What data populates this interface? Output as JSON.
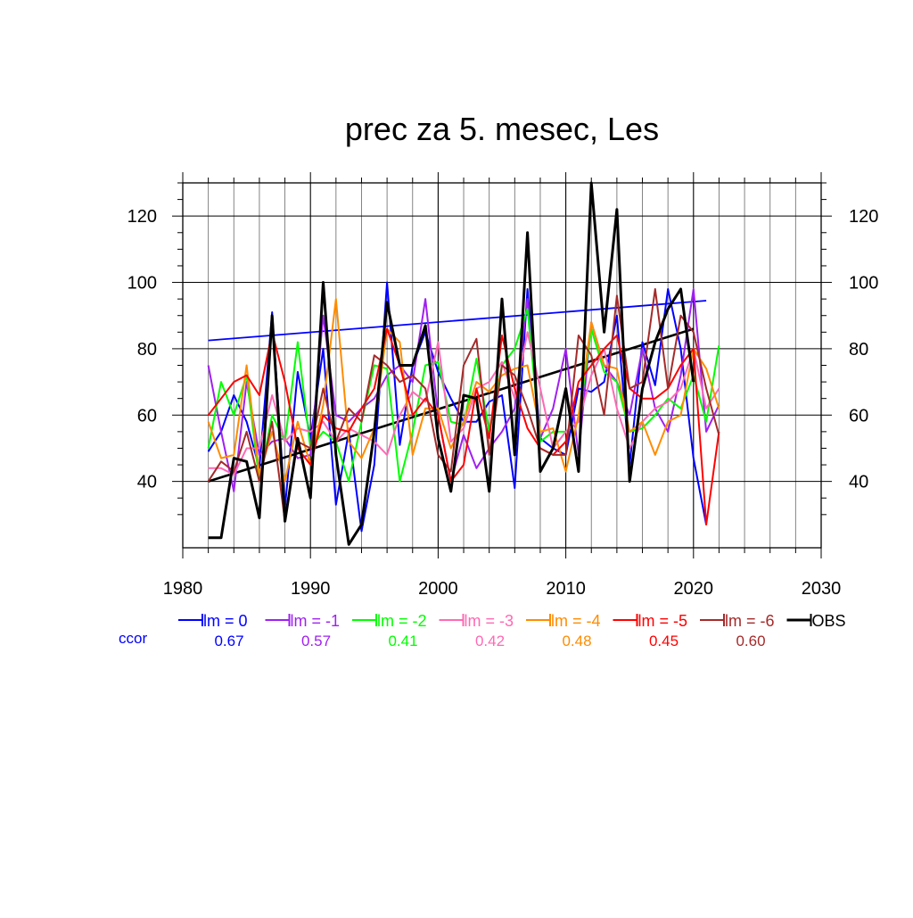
{
  "chart_data": {
    "type": "line",
    "title": "prec za 5. mesec, Les",
    "xlabel": "",
    "ylabel": "",
    "xlim": [
      1980,
      2030
    ],
    "ylim": [
      20,
      130
    ],
    "x_ticks": [
      "1980",
      "1990",
      "2000",
      "2010",
      "2020",
      "2030"
    ],
    "y_ticks": [
      "40",
      "60",
      "80",
      "100",
      "120"
    ],
    "grid": true,
    "legend_position": "bottom",
    "ccor_label": "ccor",
    "series": [
      {
        "name": "lm = 0",
        "color": "#0000ff",
        "ccor": "0.67",
        "x": [
          1982,
          1983,
          1984,
          1985,
          1986,
          1987,
          1988,
          1989,
          1990,
          1991,
          1992,
          1993,
          1994,
          1995,
          1996,
          1997,
          1998,
          1999,
          2000,
          2001,
          2002,
          2003,
          2004,
          2005,
          2006,
          2007,
          2008,
          2009,
          2010,
          2011,
          2012,
          2013,
          2014,
          2015,
          2016,
          2017,
          2018,
          2019,
          2020,
          2021
        ],
        "y": [
          49,
          55,
          66,
          58,
          44,
          91,
          32,
          73,
          53,
          80,
          33,
          55,
          25,
          45,
          100,
          51,
          75,
          85,
          73,
          65,
          58,
          58,
          64,
          66,
          38,
          98,
          53,
          50,
          48,
          68,
          67,
          70,
          90,
          45,
          82,
          69,
          98,
          80,
          47,
          27
        ]
      },
      {
        "name": "lm = -1",
        "color": "#a020f0",
        "ccor": "0.57",
        "x": [
          1982,
          1983,
          1984,
          1985,
          1986,
          1987,
          1988,
          1989,
          1990,
          1991,
          1992,
          1993,
          1994,
          1995,
          1996,
          1997,
          1998,
          1999,
          2000,
          2001,
          2002,
          2003,
          2004,
          2005,
          2006,
          2007,
          2008,
          2009,
          2010,
          2011,
          2012,
          2013,
          2014,
          2015,
          2016,
          2017,
          2018,
          2019,
          2020,
          2021,
          2022
        ],
        "y": [
          75,
          55,
          37,
          70,
          48,
          52,
          53,
          47,
          48,
          90,
          60,
          58,
          62,
          65,
          72,
          75,
          70,
          95,
          60,
          40,
          54,
          44,
          50,
          55,
          62,
          95,
          53,
          62,
          80,
          48,
          88,
          75,
          70,
          60,
          80,
          62,
          55,
          72,
          98,
          55,
          63
        ]
      },
      {
        "name": "lm = -2",
        "color": "#00ff00",
        "ccor": "0.41",
        "x": [
          1982,
          1983,
          1984,
          1985,
          1986,
          1987,
          1988,
          1989,
          1990,
          1991,
          1992,
          1993,
          1994,
          1995,
          1996,
          1997,
          1998,
          1999,
          2000,
          2001,
          2002,
          2003,
          2004,
          2005,
          2006,
          2007,
          2008,
          2009,
          2010,
          2011,
          2012,
          2013,
          2014,
          2015,
          2016,
          2017,
          2018,
          2019,
          2020,
          2021,
          2022
        ],
        "y": [
          50,
          70,
          60,
          72,
          40,
          60,
          52,
          82,
          50,
          55,
          52,
          40,
          58,
          75,
          74,
          40,
          55,
          75,
          76,
          58,
          57,
          77,
          55,
          75,
          80,
          92,
          52,
          55,
          55,
          58,
          86,
          73,
          70,
          55,
          56,
          60,
          65,
          62,
          72,
          58,
          81
        ]
      },
      {
        "name": "lm = -3",
        "color": "#ff69b4",
        "ccor": "0.42",
        "x": [
          1982,
          1983,
          1984,
          1985,
          1986,
          1987,
          1988,
          1989,
          1990,
          1991,
          1992,
          1993,
          1994,
          1995,
          1996,
          1997,
          1998,
          1999,
          2000,
          2001,
          2002,
          2003,
          2004,
          2005,
          2006,
          2007,
          2008,
          2009,
          2010,
          2011,
          2012,
          2013,
          2014,
          2015,
          2016,
          2017,
          2018,
          2019,
          2020,
          2021,
          2022
        ],
        "y": [
          44,
          44,
          42,
          50,
          50,
          66,
          52,
          56,
          55,
          58,
          52,
          56,
          54,
          52,
          48,
          60,
          67,
          64,
          82,
          52,
          56,
          68,
          70,
          76,
          65,
          85,
          68,
          50,
          55,
          58,
          72,
          80,
          62,
          50,
          58,
          62,
          64,
          68,
          80,
          62,
          68
        ]
      },
      {
        "name": "lm = -4",
        "color": "#ff8c00",
        "ccor": "0.48",
        "x": [
          1982,
          1983,
          1984,
          1985,
          1986,
          1987,
          1988,
          1989,
          1990,
          1991,
          1992,
          1993,
          1994,
          1995,
          1996,
          1997,
          1998,
          1999,
          2000,
          2001,
          2002,
          2003,
          2004,
          2005,
          2006,
          2007,
          2008,
          2009,
          2010,
          2011,
          2012,
          2013,
          2014,
          2015,
          2016,
          2017,
          2018,
          2019,
          2020,
          2021,
          2022
        ],
        "y": [
          58,
          47,
          48,
          75,
          42,
          55,
          40,
          58,
          45,
          63,
          95,
          52,
          47,
          56,
          86,
          82,
          48,
          62,
          62,
          50,
          58,
          70,
          67,
          72,
          74,
          75,
          55,
          56,
          43,
          60,
          88,
          75,
          74,
          55,
          58,
          48,
          58,
          60,
          80,
          74,
          62
        ]
      },
      {
        "name": "lm = -5",
        "color": "#ff0000",
        "ccor": "0.45",
        "x": [
          1982,
          1983,
          1984,
          1985,
          1986,
          1987,
          1988,
          1989,
          1990,
          1991,
          1992,
          1993,
          1994,
          1995,
          1996,
          1997,
          1998,
          1999,
          2000,
          2001,
          2002,
          2003,
          2004,
          2005,
          2006,
          2007,
          2008,
          2009,
          2010,
          2011,
          2012,
          2013,
          2014,
          2015,
          2016,
          2017,
          2018,
          2019,
          2020,
          2021,
          2022
        ],
        "y": [
          60,
          65,
          70,
          72,
          66,
          85,
          70,
          50,
          45,
          60,
          56,
          55,
          62,
          68,
          86,
          75,
          60,
          65,
          60,
          40,
          45,
          68,
          53,
          84,
          68,
          56,
          50,
          48,
          52,
          70,
          75,
          80,
          84,
          68,
          65,
          65,
          68,
          75,
          80,
          27,
          55
        ]
      },
      {
        "name": "lm = -6",
        "color": "#a52a2a",
        "ccor": "0.60",
        "x": [
          1982,
          1983,
          1984,
          1985,
          1986,
          1987,
          1988,
          1989,
          1990,
          1991,
          1992,
          1993,
          1994,
          1995,
          1996,
          1997,
          1998,
          1999,
          2000,
          2001,
          2002,
          2003,
          2004,
          2005,
          2006,
          2007,
          2008,
          2009,
          2010,
          2011,
          2012,
          2013,
          2014,
          2015,
          2016,
          2017,
          2018,
          2019,
          2020,
          2021,
          2022
        ],
        "y": [
          40,
          46,
          43,
          55,
          40,
          58,
          28,
          52,
          50,
          68,
          52,
          62,
          58,
          78,
          75,
          70,
          72,
          68,
          48,
          43,
          75,
          83,
          48,
          75,
          72,
          62,
          50,
          48,
          48,
          84,
          78,
          60,
          96,
          68,
          70,
          98,
          68,
          90,
          85,
          68,
          54
        ]
      },
      {
        "name": "OBS",
        "color": "#000000",
        "ccor": "",
        "x": [
          1982,
          1983,
          1984,
          1985,
          1986,
          1987,
          1988,
          1989,
          1990,
          1991,
          1992,
          1993,
          1994,
          1995,
          1996,
          1997,
          1998,
          1999,
          2000,
          2001,
          2002,
          2003,
          2004,
          2005,
          2006,
          2007,
          2008,
          2009,
          2010,
          2011,
          2012,
          2013,
          2014,
          2015,
          2016,
          2017,
          2018,
          2019,
          2020
        ],
        "y": [
          23,
          23,
          47,
          46,
          29,
          90,
          28,
          53,
          35,
          100,
          48,
          21,
          27,
          55,
          94,
          75,
          75,
          87,
          53,
          37,
          66,
          65,
          37,
          95,
          48,
          115,
          43,
          50,
          68,
          43,
          130,
          85,
          122,
          40,
          68,
          82,
          92,
          98,
          70
        ]
      }
    ],
    "trend_lines": [
      {
        "color": "#0000ff",
        "x": [
          1982,
          2021
        ],
        "y": [
          82.5,
          94.5
        ]
      },
      {
        "color": "#000000",
        "x": [
          1982,
          2020
        ],
        "y": [
          40,
          86
        ]
      }
    ]
  }
}
